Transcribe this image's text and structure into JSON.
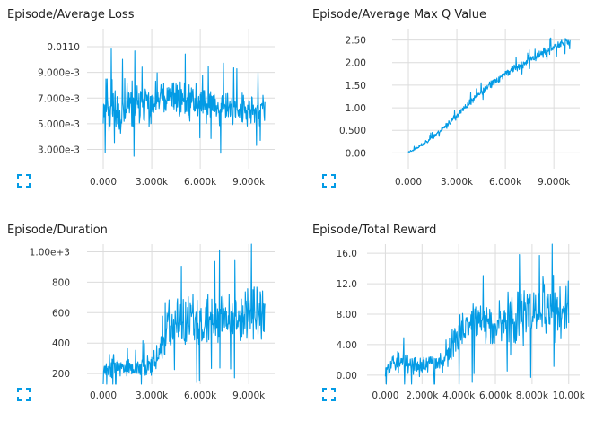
{
  "accent": "#039be5",
  "expand_icon": "fullscreen-icon",
  "chart_data": [
    {
      "type": "line",
      "title": "Episode/Average Loss",
      "xlabel": "",
      "ylabel": "",
      "x_tick_labels": [
        "0.000",
        "3.000k",
        "6.000k",
        "9.000k"
      ],
      "x_ticks": [
        0,
        3000,
        6000,
        9000
      ],
      "y_tick_labels": [
        "3.000e-3",
        "5.000e-3",
        "7.000e-3",
        "9.000e-3",
        "0.0110"
      ],
      "y_ticks": [
        0.003,
        0.005,
        0.007,
        0.009,
        0.011
      ],
      "xlim": [
        -1000,
        10600
      ],
      "ylim": [
        0.0015,
        0.0124
      ],
      "grid": true,
      "series": [
        {
          "x": [
            0,
            300,
            600,
            900,
            1200,
            1500,
            1800,
            2100,
            2400,
            2700,
            3000,
            3300,
            3600,
            3900,
            4200,
            4500,
            4800,
            5100,
            5400,
            5700,
            6000,
            6300,
            6600,
            6900,
            7200,
            7500,
            7800,
            8100,
            8400,
            8700,
            9000,
            9300,
            9600,
            9900,
            10000
          ],
          "y": [
            0.0062,
            0.0068,
            0.0064,
            0.0058,
            0.006,
            0.0063,
            0.0065,
            0.0062,
            0.0064,
            0.0066,
            0.0061,
            0.0068,
            0.007,
            0.0066,
            0.0071,
            0.0072,
            0.0069,
            0.007,
            0.0066,
            0.0068,
            0.0067,
            0.0069,
            0.0065,
            0.0064,
            0.0062,
            0.0066,
            0.006,
            0.0061,
            0.0063,
            0.006,
            0.0058,
            0.0061,
            0.006,
            0.0062,
            0.006
          ],
          "band": [
            0.0028,
            0.003,
            0.003,
            0.0028,
            0.0026,
            0.0026,
            0.0025,
            0.0025,
            0.0025,
            0.0024,
            0.0024,
            0.0024,
            0.0023,
            0.0023,
            0.0022,
            0.0022,
            0.0022,
            0.0021,
            0.0021,
            0.0021,
            0.0021,
            0.0021,
            0.002,
            0.002,
            0.002,
            0.002,
            0.002,
            0.0019,
            0.0019,
            0.0019,
            0.0019,
            0.0019,
            0.0019,
            0.0019,
            0.0019
          ],
          "seed": 11
        }
      ]
    },
    {
      "type": "line",
      "title": "Episode/Average Max Q Value",
      "xlabel": "",
      "ylabel": "",
      "x_tick_labels": [
        "0.000",
        "3.000k",
        "6.000k",
        "9.000k"
      ],
      "x_ticks": [
        0,
        3000,
        6000,
        9000
      ],
      "y_tick_labels": [
        "0.00",
        "0.500",
        "1.00",
        "1.50",
        "2.00",
        "2.50"
      ],
      "y_ticks": [
        0,
        0.5,
        1.0,
        1.5,
        2.0,
        2.5
      ],
      "xlim": [
        -1000,
        10600
      ],
      "ylim": [
        -0.35,
        2.75
      ],
      "grid": true,
      "series": [
        {
          "x": [
            0,
            500,
            1000,
            1500,
            2000,
            2500,
            3000,
            3500,
            4000,
            4500,
            5000,
            5500,
            6000,
            6500,
            7000,
            7500,
            8000,
            8500,
            9000,
            9500,
            10000
          ],
          "y": [
            0.02,
            0.1,
            0.22,
            0.35,
            0.5,
            0.66,
            0.82,
            1.0,
            1.18,
            1.35,
            1.48,
            1.62,
            1.76,
            1.86,
            1.96,
            2.06,
            2.16,
            2.24,
            2.33,
            2.42,
            2.46
          ],
          "band": [
            0.04,
            0.05,
            0.06,
            0.07,
            0.08,
            0.09,
            0.1,
            0.11,
            0.12,
            0.12,
            0.13,
            0.13,
            0.13,
            0.14,
            0.14,
            0.14,
            0.14,
            0.14,
            0.14,
            0.14,
            0.12
          ],
          "seed": 23
        }
      ]
    },
    {
      "type": "line",
      "title": "Episode/Duration",
      "xlabel": "",
      "ylabel": "",
      "x_tick_labels": [
        "0.000",
        "3.000k",
        "6.000k",
        "9.000k"
      ],
      "x_ticks": [
        0,
        3000,
        6000,
        9000
      ],
      "y_tick_labels": [
        "200",
        "400",
        "600",
        "800",
        "1.00e+3"
      ],
      "y_ticks": [
        200,
        400,
        600,
        800,
        1000
      ],
      "xlim": [
        -1000,
        10600
      ],
      "ylim": [
        130,
        1050
      ],
      "grid": true,
      "series": [
        {
          "x": [
            0,
            500,
            1000,
            1500,
            2000,
            2500,
            3000,
            3500,
            3800,
            4000,
            4500,
            5000,
            5500,
            6000,
            6500,
            7000,
            7500,
            8000,
            8500,
            9000,
            9500,
            10000
          ],
          "y": [
            240,
            250,
            240,
            230,
            230,
            240,
            280,
            330,
            380,
            480,
            520,
            530,
            530,
            540,
            550,
            560,
            580,
            580,
            590,
            600,
            600,
            580
          ],
          "band": [
            120,
            110,
            95,
            90,
            90,
            100,
            110,
            120,
            150,
            230,
            230,
            240,
            240,
            250,
            250,
            260,
            260,
            260,
            270,
            270,
            270,
            260
          ],
          "seed": 37
        }
      ]
    },
    {
      "type": "line",
      "title": "Episode/Total Reward",
      "xlabel": "",
      "ylabel": "",
      "x_tick_labels": [
        "0.000",
        "2.000k",
        "4.000k",
        "6.000k",
        "8.000k",
        "10.00k"
      ],
      "x_ticks": [
        0,
        2000,
        4000,
        6000,
        8000,
        10000
      ],
      "y_tick_labels": [
        "0.00",
        "4.00",
        "8.00",
        "12.0",
        "16.0"
      ],
      "y_ticks": [
        0,
        4,
        8,
        12,
        16
      ],
      "xlim": [
        -1000,
        10600
      ],
      "ylim": [
        -1.2,
        17.2
      ],
      "grid": true,
      "series": [
        {
          "x": [
            0,
            500,
            1000,
            1500,
            2000,
            2500,
            3000,
            3400,
            3700,
            4000,
            4500,
            5000,
            5500,
            6000,
            6500,
            7000,
            7500,
            8000,
            8500,
            9000,
            9500,
            10000
          ],
          "y": [
            1.5,
            1.7,
            1.4,
            1.3,
            1.3,
            1.5,
            1.8,
            2.8,
            4.2,
            5.8,
            6.5,
            6.8,
            7.0,
            7.2,
            7.4,
            7.6,
            7.9,
            8.0,
            8.3,
            8.4,
            8.2,
            7.8
          ],
          "band": [
            2.4,
            2.2,
            2.0,
            1.9,
            1.9,
            2.0,
            2.2,
            2.6,
            3.2,
            4.6,
            4.8,
            5.0,
            5.0,
            5.2,
            5.3,
            5.5,
            5.6,
            5.7,
            5.8,
            5.8,
            5.8,
            5.6
          ],
          "seed": 53
        }
      ]
    }
  ]
}
